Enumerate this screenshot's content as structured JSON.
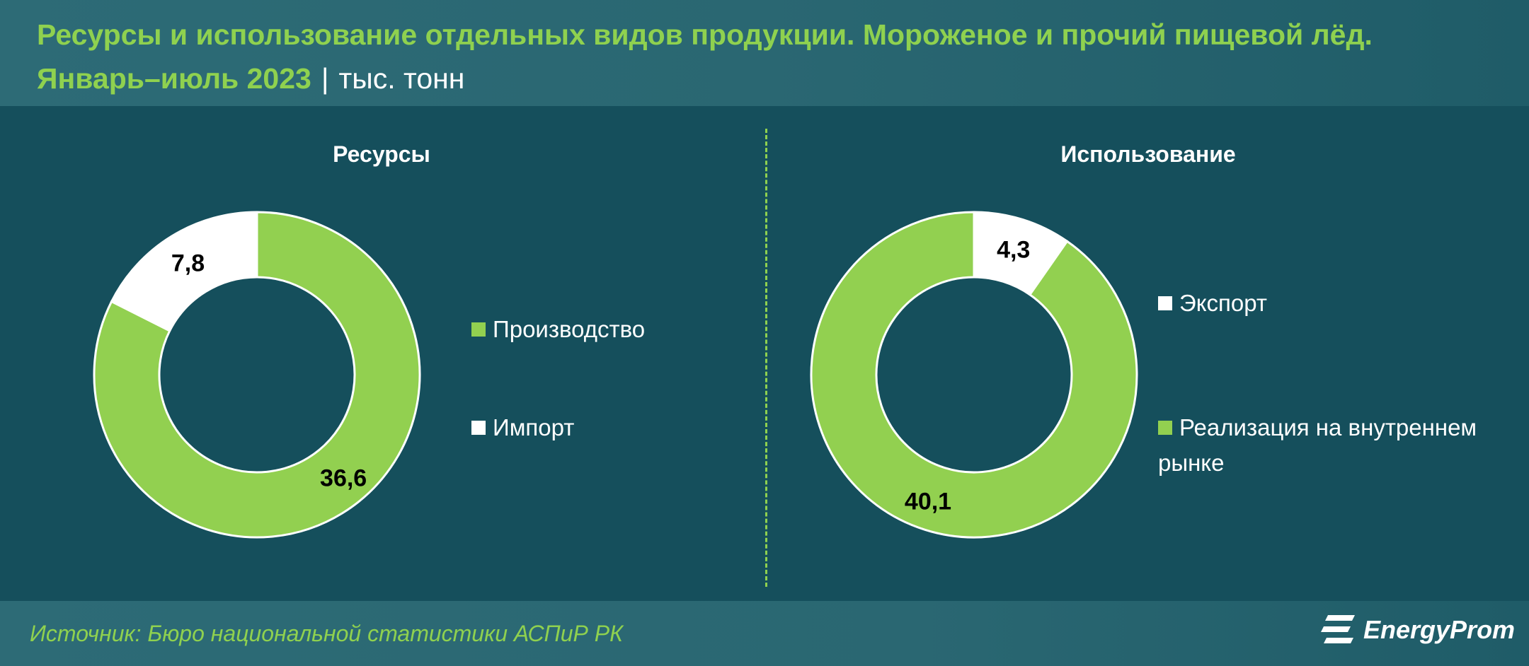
{
  "header": {
    "title_line1": "Ресурсы и использование отдельных видов продукции. Мороженое и прочий пищевой лёд.",
    "title_line2": "Январь–июль 2023",
    "separator": "|",
    "unit": "тыс. тонн"
  },
  "colors": {
    "background": "#154f5c",
    "green": "#92d050",
    "white": "#ffffff",
    "title_green": "#8fd14f"
  },
  "chart_data": [
    {
      "type": "pie",
      "title": "Ресурсы",
      "categories": [
        "Производство",
        "Импорт"
      ],
      "values": [
        36.6,
        7.8
      ],
      "value_labels": [
        "36,6",
        "7,8"
      ],
      "colors": [
        "#92d050",
        "#ffffff"
      ],
      "donut": true,
      "legend_placement": "right"
    },
    {
      "type": "pie",
      "title": "Использование",
      "categories": [
        "Экспорт",
        "Реализация на внутреннем рынке"
      ],
      "values": [
        4.3,
        40.1
      ],
      "value_labels": [
        "4,3",
        "40,1"
      ],
      "colors": [
        "#ffffff",
        "#92d050"
      ],
      "donut": true,
      "legend_placement": "right"
    }
  ],
  "footer": {
    "source": "Источник: Бюро национальной статистики АСПиР РК",
    "logo_text": "EnergyProm",
    "logo_icon": "energyprom-logo-icon"
  }
}
